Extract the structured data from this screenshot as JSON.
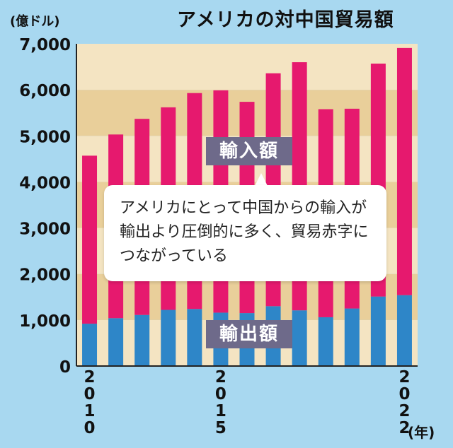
{
  "chart_data": {
    "type": "bar",
    "stacked": true,
    "title": "アメリカの対中国貿易額",
    "ylabel": "(億ドル)",
    "xlabel": "(年)",
    "ylim": [
      0,
      7000
    ],
    "yticks": [
      0,
      1000,
      2000,
      3000,
      4000,
      5000,
      6000,
      7000
    ],
    "ytick_labels": [
      "0",
      "1,000",
      "2,000",
      "3,000",
      "4,000",
      "5,000",
      "6,000",
      "7,000"
    ],
    "categories": [
      "2010",
      "2011",
      "2012",
      "2013",
      "2014",
      "2015",
      "2016",
      "2017",
      "2018",
      "2019",
      "2020",
      "2021",
      "2022"
    ],
    "xtick_labels": [
      {
        "year": "2010",
        "index": 0
      },
      {
        "year": "2015",
        "index": 5
      },
      {
        "year": "2022",
        "index": 12
      }
    ],
    "series": [
      {
        "name": "輸出額",
        "color": "#2e86c8",
        "values": [
          920,
          1040,
          1110,
          1220,
          1240,
          1160,
          1150,
          1300,
          1210,
          1060,
          1250,
          1510,
          1540
        ]
      },
      {
        "name": "輸入額",
        "color": "#e6196e",
        "values": [
          3650,
          3990,
          4260,
          4400,
          4690,
          4830,
          4590,
          5060,
          5390,
          4520,
          4340,
          5060,
          5370
        ]
      }
    ],
    "annotation": "アメリカにとって中国からの輸入が輸出より圧倒的に多く、貿易赤字につながっている"
  }
}
